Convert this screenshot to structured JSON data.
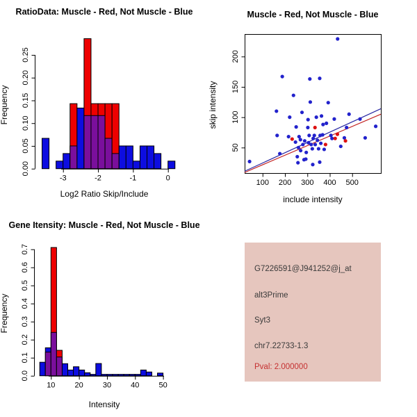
{
  "colors": {
    "hist_blue": "#0d0de0",
    "hist_red": "#ee0000",
    "hist_overlap": "#7a0f9c",
    "dot_blue": "#2222cc",
    "dot_red": "#dd1111",
    "line_blue": "#2929a3",
    "line_red": "#c22121",
    "panel_bg": "#e6c6be",
    "pval_red": "#c53030",
    "axis": "#000000"
  },
  "chart_data": [
    {
      "id": "ratio_hist",
      "type": "histogram-overlay",
      "title": "RatioData: Muscle - Red, Not Muscle - Blue",
      "xlabel": "Log2 Ratio Skip/Include",
      "ylabel": "Frequency",
      "x_ticks": [
        -3,
        -2,
        -1,
        0
      ],
      "x_tick_labels": [
        "-3",
        "-2",
        "-1",
        "0"
      ],
      "y_ticks": [
        0,
        0.05,
        0.1,
        0.15,
        0.2,
        0.25
      ],
      "y_tick_labels": [
        "0.00",
        "0.05",
        "0.10",
        "0.15",
        "0.20",
        "0.25"
      ],
      "bin_start": -3.6,
      "bin_width": 0.2,
      "ylim": [
        0,
        0.29
      ],
      "series": [
        {
          "name": "Not Muscle",
          "color_key": "hist_blue",
          "values": [
            0.0667,
            0,
            0.0167,
            0.0333,
            0.05,
            0.1333,
            0.1167,
            0.1167,
            0.1167,
            0.0667,
            0.0333,
            0.05,
            0.05,
            0.0167,
            0.05,
            0.05,
            0.0333,
            0,
            0.0167
          ]
        },
        {
          "name": "Muscle",
          "color_key": "hist_red",
          "values": [
            0,
            0,
            0,
            0,
            0.1429,
            0,
            0.2857,
            0.1429,
            0.1429,
            0.1429,
            0.1429
          ]
        }
      ]
    },
    {
      "id": "intensity_scatter",
      "type": "scatter",
      "title": "Muscle - Red, Not Muscle - Blue",
      "xlabel": "include intensity",
      "ylabel": "skip intensity",
      "x_ticks": [
        100,
        200,
        300,
        400,
        500
      ],
      "x_tick_labels": [
        "100",
        "200",
        "300",
        "400",
        "500"
      ],
      "y_ticks": [
        50,
        100,
        150,
        200
      ],
      "y_tick_labels": [
        "50",
        "100",
        "150",
        "200"
      ],
      "xlim": [
        20,
        628
      ],
      "ylim": [
        8,
        237
      ],
      "series": [
        {
          "name": "Not Muscle",
          "color_key": "dot_blue",
          "points": [
            [
              42,
              27
            ],
            [
              162,
              110
            ],
            [
              165,
              70
            ],
            [
              177,
              40
            ],
            [
              188,
              167
            ],
            [
              216,
              68
            ],
            [
              221,
              100
            ],
            [
              238,
              136
            ],
            [
              247,
              59
            ],
            [
              250,
              84
            ],
            [
              255,
              35
            ],
            [
              258,
              25
            ],
            [
              260,
              50
            ],
            [
              263,
              68
            ],
            [
              269,
              63
            ],
            [
              270,
              45
            ],
            [
              276,
              108
            ],
            [
              280,
              55
            ],
            [
              285,
              30
            ],
            [
              288,
              61
            ],
            [
              293,
              31
            ],
            [
              295,
              42
            ],
            [
              302,
              83
            ],
            [
              303,
              96
            ],
            [
              305,
              58
            ],
            [
              308,
              70
            ],
            [
              311,
              163
            ],
            [
              313,
              125
            ],
            [
              317,
              55
            ],
            [
              322,
              48
            ],
            [
              324,
              22
            ],
            [
              326,
              65
            ],
            [
              331,
              70
            ],
            [
              335,
              55
            ],
            [
              340,
              100
            ],
            [
              345,
              62
            ],
            [
              350,
              48
            ],
            [
              355,
              164
            ],
            [
              355,
              26
            ],
            [
              357,
              70
            ],
            [
              360,
              57
            ],
            [
              363,
              102
            ],
            [
              368,
              71
            ],
            [
              370,
              88
            ],
            [
              375,
              47
            ],
            [
              385,
              90
            ],
            [
              393,
              124
            ],
            [
              405,
              70
            ],
            [
              410,
              65
            ],
            [
              420,
              97
            ],
            [
              435,
              229
            ],
            [
              449,
              52
            ],
            [
              465,
              66
            ],
            [
              475,
              83
            ],
            [
              486,
              105
            ],
            [
              535,
              97
            ],
            [
              558,
              66
            ],
            [
              605,
              85
            ]
          ]
        },
        {
          "name": "Muscle",
          "color_key": "dot_red",
          "points": [
            [
              232,
              64
            ],
            [
              334,
              83
            ],
            [
              381,
              55
            ],
            [
              424,
              65
            ],
            [
              434,
              72
            ],
            [
              470,
              61
            ]
          ]
        }
      ],
      "lines": [
        {
          "name": "not-muscle-fit",
          "color_key": "line_blue",
          "x1": 20,
          "y1": 11,
          "x2": 628,
          "y2": 114
        },
        {
          "name": "muscle-fit",
          "color_key": "line_red",
          "x1": 20,
          "y1": 9,
          "x2": 628,
          "y2": 105
        }
      ]
    },
    {
      "id": "gene_hist",
      "type": "histogram-overlay",
      "title": "Gene Itensity: Muscle - Red, Not Muscle - Blue",
      "xlabel": "Intensity",
      "ylabel": "Frequency",
      "x_ticks": [
        10,
        20,
        30,
        40,
        50
      ],
      "x_tick_labels": [
        "10",
        "20",
        "30",
        "40",
        "50"
      ],
      "y_ticks": [
        0,
        0.1,
        0.2,
        0.3,
        0.4,
        0.5,
        0.6,
        0.7
      ],
      "y_tick_labels": [
        "0.0",
        "0.1",
        "0.2",
        "0.3",
        "0.4",
        "0.5",
        "0.6",
        "0.7"
      ],
      "bin_start": 6,
      "bin_width": 2,
      "ylim": [
        0,
        0.72
      ],
      "series": [
        {
          "name": "Not Muscle",
          "color_key": "hist_blue",
          "values": [
            0.075,
            0.155,
            0.24,
            0.104,
            0.067,
            0.032,
            0.05,
            0.032,
            0.017,
            0.008,
            0.068,
            0.008,
            0.008,
            0.008,
            0.008,
            0.008,
            0.008,
            0.008,
            0.032,
            0.021,
            0,
            0.015
          ]
        },
        {
          "name": "Muscle",
          "color_key": "hist_red",
          "values": [
            0,
            0.131,
            0.71,
            0.141
          ]
        }
      ]
    }
  ],
  "info_panel": {
    "probe_id": "G7226591@J941252@j_at",
    "splice_type": "alt3Prime",
    "gene": "Syt3",
    "location": "chr7.22733-1.3",
    "pval": "Pval: 2.000000"
  }
}
